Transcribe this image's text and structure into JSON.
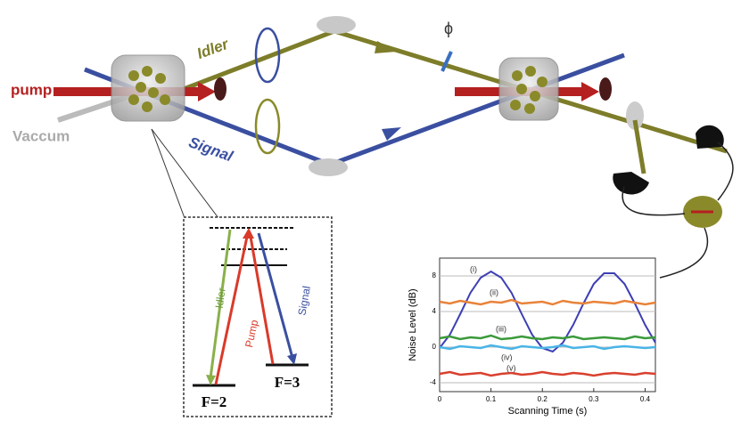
{
  "labels": {
    "pump": "pump",
    "vacuum": "Vaccum",
    "idler": "Idler",
    "signal": "Signal",
    "phase": "ϕ"
  },
  "level_diagram": {
    "idler": "Idler",
    "pump": "Pump",
    "signal": "Signal",
    "ground_left": "F=2",
    "ground_right": "F=3"
  },
  "plot": {
    "type": "line",
    "y_label": "Noise Level (dB)",
    "x_label": "Scanning Time (s)",
    "xlim": [
      0,
      0.42
    ],
    "xticks": [
      0,
      0.1,
      0.2,
      0.3,
      0.4
    ],
    "ylim": [
      -5,
      10
    ],
    "yticks": [
      -4,
      0,
      4,
      8
    ],
    "grid": true,
    "x": [
      0,
      0.02,
      0.04,
      0.06,
      0.08,
      0.1,
      0.12,
      0.14,
      0.16,
      0.18,
      0.2,
      0.22,
      0.24,
      0.26,
      0.28,
      0.3,
      0.32,
      0.34,
      0.36,
      0.38,
      0.4,
      0.42
    ],
    "series": [
      {
        "name": "(i)",
        "color": "#3c3fb4",
        "values": [
          -0.1,
          1.4,
          3.7,
          6.1,
          7.8,
          8.5,
          7.8,
          6.1,
          3.7,
          1.4,
          -0.1,
          -0.5,
          0.5,
          2.5,
          4.9,
          7.1,
          8.3,
          8.3,
          7.1,
          4.9,
          2.5,
          0.5
        ]
      },
      {
        "name": "(ii)",
        "color": "#e8833a",
        "values": [
          5.1,
          4.9,
          5.2,
          5.0,
          4.8,
          5.1,
          5.0,
          5.3,
          4.9,
          5.0,
          5.1,
          4.8,
          5.2,
          5.0,
          4.9,
          5.1,
          5.0,
          4.9,
          5.2,
          5.0,
          4.8,
          5.0
        ]
      },
      {
        "name": "(iii)",
        "color": "#3a9a3a",
        "values": [
          1.0,
          1.2,
          0.9,
          1.1,
          1.0,
          1.3,
          0.9,
          1.0,
          1.2,
          1.0,
          0.9,
          1.1,
          1.0,
          1.2,
          0.9,
          1.0,
          1.1,
          1.0,
          0.9,
          1.2,
          1.0,
          1.1
        ]
      },
      {
        "name": "(iv)",
        "color": "#4ab4e6",
        "values": [
          0.0,
          -0.2,
          0.1,
          0.0,
          -0.1,
          0.2,
          0.0,
          -0.2,
          0.1,
          0.0,
          -0.1,
          0.0,
          0.2,
          -0.1,
          0.0,
          0.1,
          -0.2,
          0.0,
          0.1,
          0.0,
          -0.1,
          0.0
        ]
      },
      {
        "name": "(v)",
        "color": "#d9402e",
        "values": [
          -3.0,
          -2.8,
          -3.1,
          -3.0,
          -2.9,
          -3.2,
          -3.0,
          -2.9,
          -3.1,
          -3.0,
          -2.8,
          -3.0,
          -3.1,
          -2.9,
          -3.0,
          -3.2,
          -3.0,
          -2.9,
          -3.0,
          -3.1,
          -2.9,
          -3.0
        ]
      }
    ]
  }
}
